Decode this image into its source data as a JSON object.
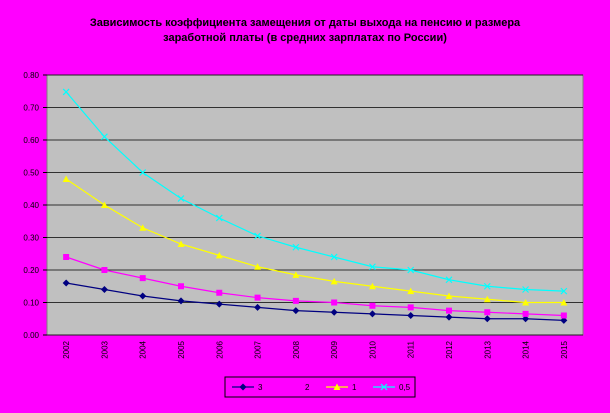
{
  "chart_data": {
    "type": "line",
    "title": "Зависимость коэффициента замещения от даты выхода на пенсию и размера заработной платы (в средних зарплатах по России)",
    "categories": [
      "2002",
      "2003",
      "2004",
      "2005",
      "2006",
      "2007",
      "2008",
      "2009",
      "2010",
      "2011",
      "2012",
      "2013",
      "2014",
      "2015"
    ],
    "series": [
      {
        "name": "3",
        "color": "#000080",
        "marker": "diamond",
        "values": [
          0.16,
          0.14,
          0.12,
          0.105,
          0.095,
          0.085,
          0.075,
          0.07,
          0.065,
          0.06,
          0.055,
          0.05,
          0.05,
          0.045
        ]
      },
      {
        "name": "2",
        "color": "#ff00ff",
        "marker": "square",
        "values": [
          0.24,
          0.2,
          0.175,
          0.15,
          0.13,
          0.115,
          0.105,
          0.1,
          0.09,
          0.085,
          0.075,
          0.07,
          0.065,
          0.06
        ]
      },
      {
        "name": "1",
        "color": "#ffff00",
        "marker": "triangle",
        "values": [
          0.48,
          0.4,
          0.33,
          0.28,
          0.245,
          0.21,
          0.185,
          0.165,
          0.15,
          0.135,
          0.12,
          0.11,
          0.1,
          0.1
        ]
      },
      {
        "name": "0,5",
        "color": "#00ffff",
        "marker": "x",
        "values": [
          0.748,
          0.61,
          0.5,
          0.42,
          0.36,
          0.305,
          0.27,
          0.24,
          0.21,
          0.2,
          0.17,
          0.15,
          0.14,
          0.135
        ]
      }
    ],
    "ylim": [
      0,
      0.8
    ],
    "yticks": [
      {
        "value": 0,
        "label": "0.00"
      },
      {
        "value": 0.1,
        "label": "0.10"
      },
      {
        "value": 0.2,
        "label": "0.20"
      },
      {
        "value": 0.3,
        "label": "0.30"
      },
      {
        "value": 0.4,
        "label": "0.40"
      },
      {
        "value": 0.5,
        "label": "0.50"
      },
      {
        "value": 0.6,
        "label": "0.60"
      },
      {
        "value": 0.7,
        "label": "0.70"
      },
      {
        "value": 0.8,
        "label": "0.80"
      }
    ],
    "grid": true,
    "legend": "bottom"
  }
}
